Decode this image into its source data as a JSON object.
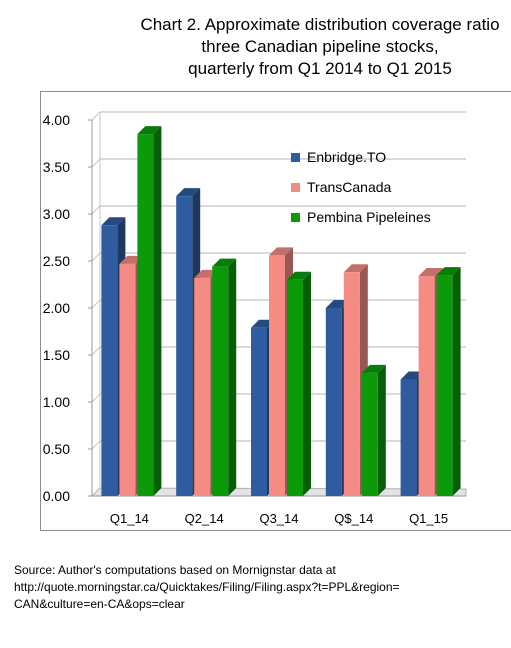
{
  "title_lines": [
    "Chart 2. Approximate distribution coverage ratio",
    "three Canadian pipeline stocks,",
    "quarterly from Q1 2014 to Q1 2015"
  ],
  "source_lines": [
    "Source: Author's computations based on Mornignstar data at",
    "http://quote.morningstar.ca/Quicktakes/Filing/Filing.aspx?t=PPL&region=",
    "CAN&culture=en-CA&ops=clear"
  ],
  "chart_data": {
    "type": "bar",
    "categories": [
      "Q1_14",
      "Q2_14",
      "Q3_14",
      "Q$_14",
      "Q1_15"
    ],
    "series": [
      {
        "name": "Enbridge.TO",
        "values": [
          2.88,
          3.19,
          1.79,
          2.0,
          1.24
        ],
        "color": "#2e5c9e"
      },
      {
        "name": "TransCanada",
        "values": [
          2.47,
          2.32,
          2.56,
          2.38,
          2.34
        ],
        "color": "#f58c84"
      },
      {
        "name": "Pembina Pipeleines",
        "values": [
          3.85,
          2.44,
          2.3,
          1.31,
          2.35
        ],
        "color": "#0a9a0a"
      }
    ],
    "y_ticks": [
      "0.00",
      "0.50",
      "1.00",
      "1.50",
      "2.00",
      "2.50",
      "3.00",
      "3.50",
      "4.00"
    ],
    "ylim": [
      0,
      4
    ],
    "grid": true,
    "legend_position": "top-right"
  }
}
